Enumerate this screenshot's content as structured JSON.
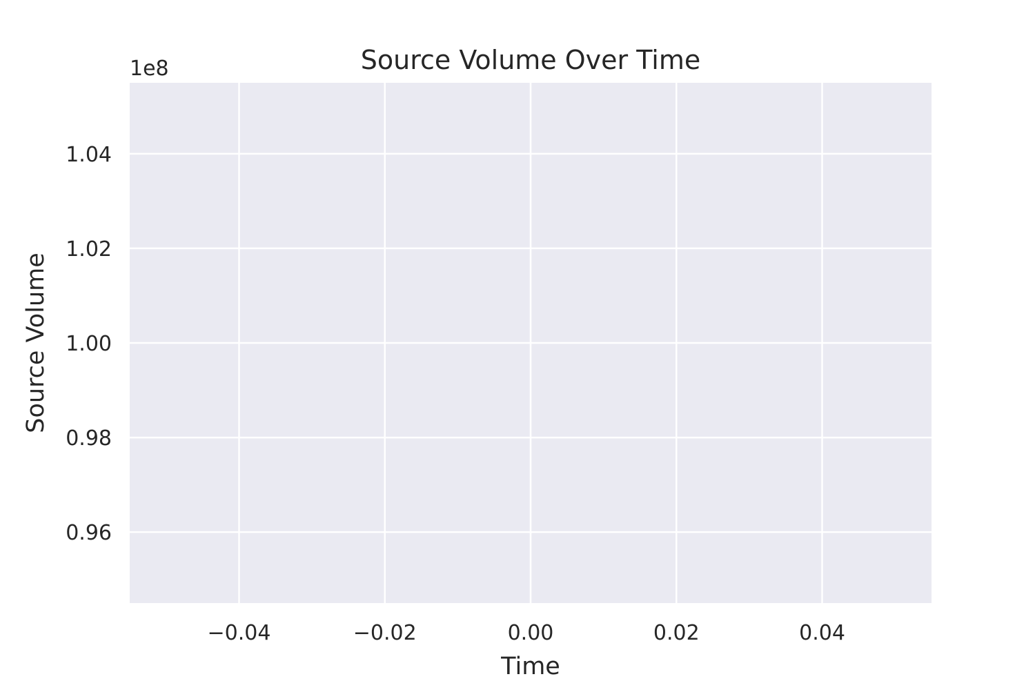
{
  "chart_data": {
    "type": "line",
    "title": "Source Volume Over Time",
    "xlabel": "Time",
    "ylabel": "Source Volume",
    "y_offset_label": "1e8",
    "xlim": [
      -0.055,
      0.055
    ],
    "ylim": [
      0.945,
      1.055
    ],
    "x_ticks": [
      -0.04,
      -0.02,
      0.0,
      0.02,
      0.04
    ],
    "x_tick_labels": [
      "−0.04",
      "−0.02",
      "0.00",
      "0.02",
      "0.04"
    ],
    "y_ticks": [
      0.96,
      0.98,
      1.0,
      1.02,
      1.04
    ],
    "y_tick_labels": [
      "0.96",
      "0.98",
      "1.00",
      "1.02",
      "1.04"
    ],
    "grid": true,
    "series": [
      {
        "x": [],
        "y": []
      }
    ],
    "colors": {
      "plot_background": "#eaeaf2",
      "grid": "#ffffff",
      "text": "#262626"
    }
  }
}
